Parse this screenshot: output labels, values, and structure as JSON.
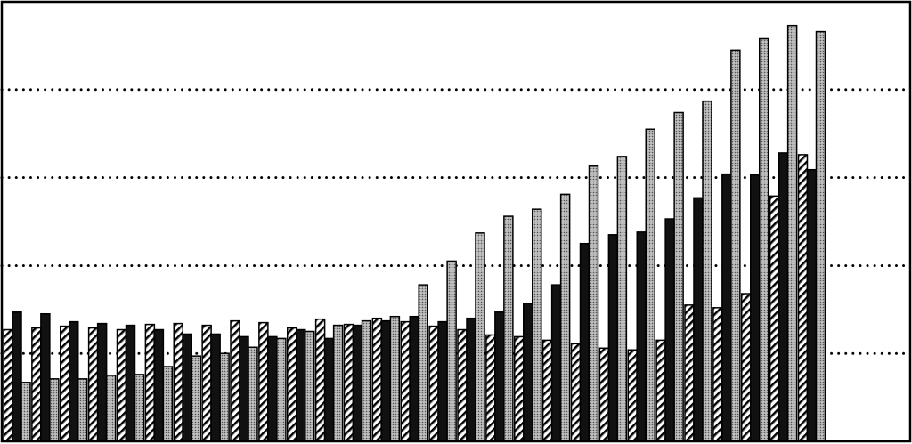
{
  "chart_data": {
    "type": "bar",
    "categories": [
      null,
      null,
      null,
      null,
      null,
      null,
      null,
      null,
      null,
      null,
      null,
      null,
      null,
      null,
      null,
      null,
      null,
      null,
      null,
      null,
      null,
      null,
      null,
      null,
      null,
      null,
      null,
      null,
      null,
      null,
      null,
      null
    ],
    "series": [
      {
        "color": "#ffffff",
        "values": [
          1.27,
          1.29,
          1.31,
          1.29,
          1.27,
          1.33,
          1.34,
          1.32,
          1.37,
          1.35,
          1.29,
          1.39,
          1.33,
          1.4,
          1.36,
          1.31,
          1.27,
          1.21,
          1.19,
          1.15,
          1.11,
          1.06,
          1.04,
          1.15,
          1.55,
          1.52,
          1.68,
          2.79,
          3.26,
          null,
          null,
          null
        ]
      },
      {
        "color": "#111111",
        "values": [
          1.47,
          1.45,
          1.36,
          1.34,
          1.32,
          1.27,
          1.22,
          1.22,
          1.19,
          1.19,
          1.27,
          1.17,
          1.32,
          1.37,
          1.42,
          1.36,
          1.4,
          1.47,
          1.57,
          1.78,
          2.25,
          2.35,
          2.38,
          2.53,
          2.77,
          3.04,
          3.03,
          3.28,
          3.09,
          null,
          null,
          null
        ]
      },
      {
        "color": "#a8a8a8",
        "values": [
          0.67,
          0.71,
          0.71,
          0.75,
          0.76,
          0.85,
          0.97,
          1.0,
          1.07,
          1.17,
          1.25,
          1.32,
          1.37,
          1.42,
          1.78,
          2.05,
          2.37,
          2.56,
          2.64,
          2.81,
          3.13,
          3.24,
          3.55,
          3.74,
          3.87,
          4.45,
          4.58,
          4.73,
          4.66,
          null,
          null,
          null
        ]
      }
    ],
    "ylim": [
      0,
      5
    ],
    "yticks": [
      1,
      2,
      3,
      4
    ],
    "grid": true,
    "tick_labels": false
  }
}
